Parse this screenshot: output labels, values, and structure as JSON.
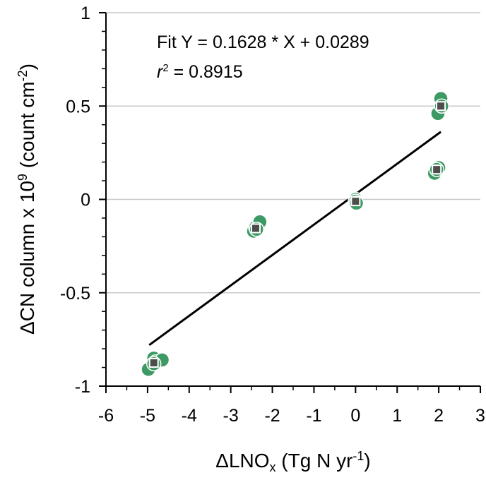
{
  "chart_data": {
    "type": "scatter",
    "x_label": [
      "ΔLNO",
      "x",
      " (Tg N yr",
      "-1",
      ")"
    ],
    "y_label": [
      "ΔCN column x 10",
      "9",
      " (count cm",
      "-2",
      ")"
    ],
    "annotations": {
      "fit": "Fit Y = 0.1628 * X + 0.0289",
      "r2": [
        "r",
        "2",
        " = 0.8915"
      ]
    },
    "xlim": [
      -6,
      3
    ],
    "xticks": [
      -6,
      -5,
      -4,
      -3,
      -2,
      -1,
      0,
      1,
      2,
      3
    ],
    "ylim": [
      -1,
      1
    ],
    "yticks": [
      -1,
      -0.5,
      0,
      0.5,
      1
    ],
    "grid": true,
    "series": [
      {
        "color": "#3d9a64",
        "x": [
          -4.98,
          -4.85,
          -4.8,
          -4.65,
          -4.85,
          -2.45,
          -2.4,
          -2.3,
          -2.38,
          0,
          0,
          0.02,
          1.98,
          2.05,
          2.07,
          1.9,
          2.0,
          1.95
        ],
        "values": [
          -0.91,
          -0.85,
          -0.87,
          -0.86,
          -0.88,
          -0.17,
          -0.15,
          -0.12,
          -0.16,
          0,
          -0.01,
          -0.02,
          0.46,
          0.54,
          0.5,
          0.14,
          0.17,
          0.16
        ]
      },
      {
        "color": "#4d4d4d",
        "x": [
          -4.85,
          -2.4,
          0,
          2.05,
          1.95
        ],
        "values": [
          -0.875,
          -0.155,
          -0.01,
          0.5,
          0.16
        ]
      }
    ],
    "fit_line": {
      "color": "#000000",
      "x": [
        -4.96,
        2.05
      ],
      "values": [
        -0.78,
        0.362
      ]
    }
  }
}
